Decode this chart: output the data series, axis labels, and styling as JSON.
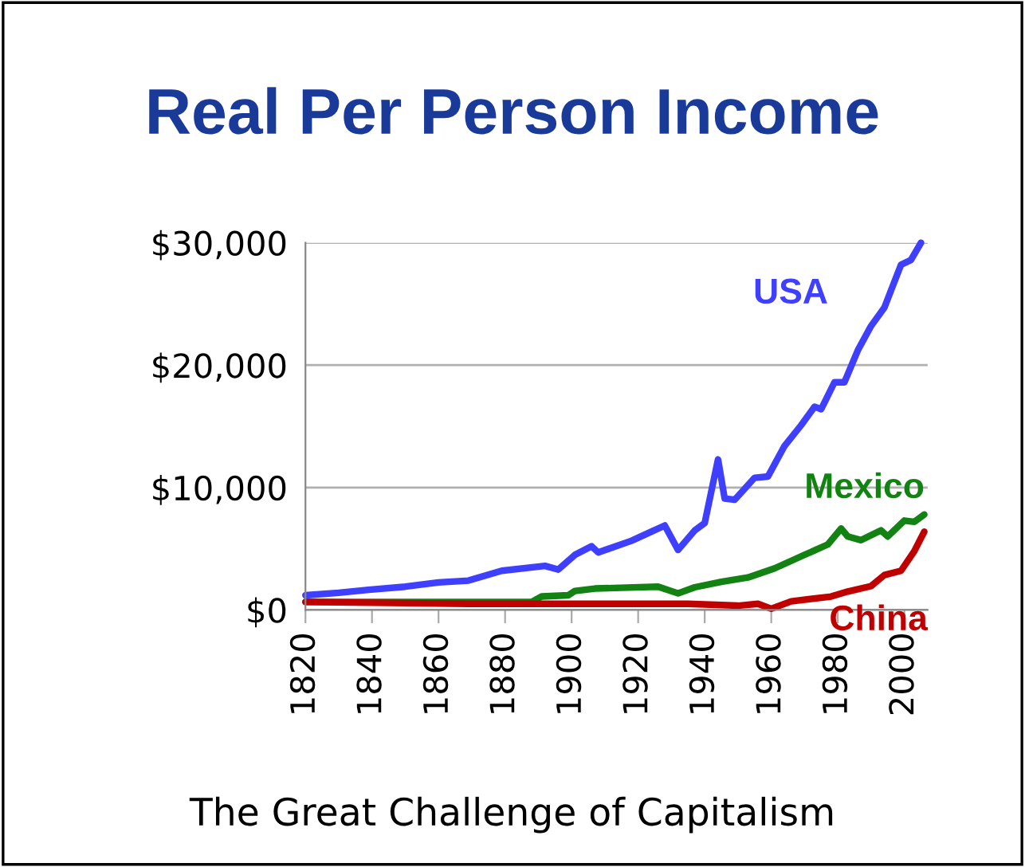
{
  "chart_data": {
    "type": "line",
    "title": "Real Per Person Income",
    "annotations": [
      "The Great Challenge of Capitalism"
    ],
    "series": [
      {
        "name": "USA",
        "color": "#3f3fff",
        "x": [
          1820,
          1830,
          1839,
          1850,
          1860,
          1869,
          1879,
          1892,
          1896,
          1901,
          1906,
          1908,
          1918,
          1924,
          1928,
          1932,
          1937,
          1940,
          1944,
          1946,
          1949,
          1955,
          1959,
          1964,
          1969,
          1973,
          1975,
          1979,
          1982,
          1986,
          1990,
          1994,
          1999,
          2002,
          2005
        ],
        "values": [
          1200,
          1400,
          1650,
          1900,
          2250,
          2400,
          3200,
          3600,
          3300,
          4500,
          5200,
          4700,
          5650,
          6400,
          6900,
          4900,
          6500,
          7100,
          12300,
          9100,
          9000,
          10800,
          10900,
          13400,
          15100,
          16600,
          16400,
          18600,
          18600,
          21200,
          23200,
          24700,
          28200,
          28600,
          30000
        ]
      },
      {
        "name": "Mexico",
        "color": "#128212",
        "x": [
          1820,
          1888,
          1891,
          1899,
          1901,
          1907,
          1926,
          1932,
          1937,
          1945,
          1953,
          1961,
          1970,
          1977,
          1981,
          1983,
          1987,
          1993,
          1995,
          2000,
          2003,
          2006
        ],
        "values": [
          650,
          650,
          1100,
          1200,
          1550,
          1750,
          1900,
          1350,
          1850,
          2300,
          2650,
          3400,
          4500,
          5350,
          6650,
          6000,
          5700,
          6500,
          6000,
          7300,
          7200,
          7800
        ]
      },
      {
        "name": "China",
        "color": "#c00000",
        "x": [
          1820,
          1869,
          1935,
          1950,
          1956,
          1960,
          1966,
          1978,
          1983,
          1990,
          1994,
          1999,
          2003,
          2006
        ],
        "values": [
          650,
          500,
          500,
          350,
          500,
          100,
          700,
          1100,
          1500,
          1950,
          2850,
          3200,
          4800,
          6400
        ]
      }
    ],
    "xlim": [
      1820,
      2007
    ],
    "xticks": [
      1820,
      1840,
      1860,
      1880,
      1900,
      1920,
      1940,
      1960,
      1980,
      2000
    ],
    "ylim": [
      0,
      30000
    ],
    "yticks": [
      {
        "value": 0,
        "label": "$0"
      },
      {
        "value": 10000,
        "label": "$10,000"
      },
      {
        "value": 20000,
        "label": "$20,000"
      },
      {
        "value": 30000,
        "label": "$30,000"
      }
    ],
    "grid": "y",
    "legend": false,
    "marker": "none",
    "line_style": "solid"
  }
}
